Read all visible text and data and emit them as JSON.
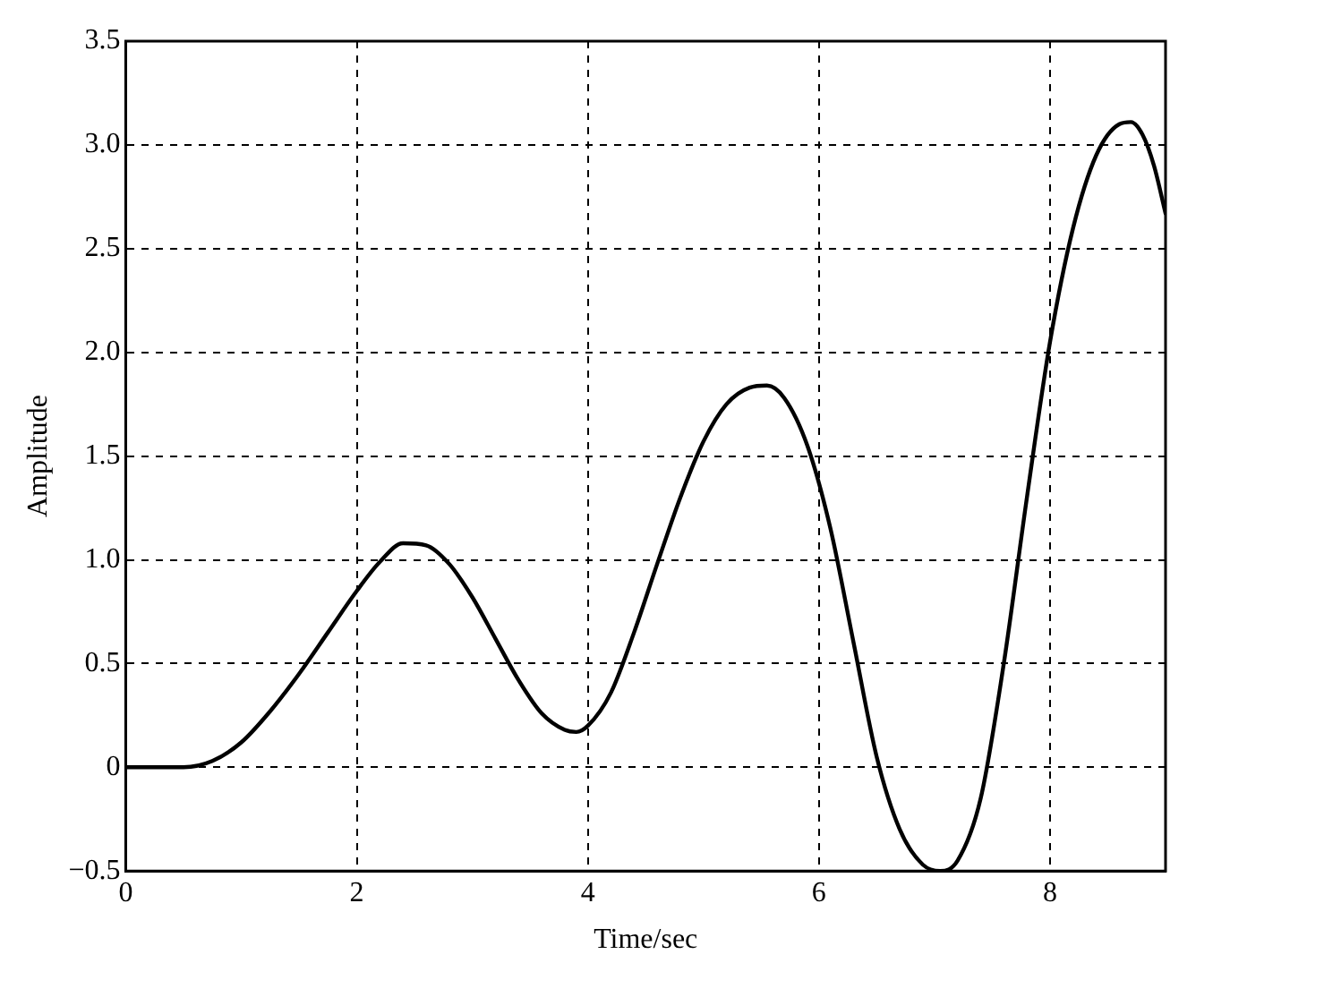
{
  "chart_data": {
    "type": "line",
    "xlabel": "Time/sec",
    "ylabel": "Amplitude",
    "x": [
      0,
      0.5,
      0.75,
      1,
      1.25,
      1.5,
      1.75,
      2,
      2.2,
      2.4,
      2.6,
      2.8,
      3,
      3.2,
      3.4,
      3.6,
      3.8,
      3.9,
      4,
      4.2,
      4.4,
      4.6,
      4.8,
      5,
      5.2,
      5.4,
      5.55,
      5.7,
      5.9,
      6.1,
      6.3,
      6.5,
      6.7,
      6.9,
      7.05,
      7.2,
      7.4,
      7.6,
      7.8,
      8,
      8.2,
      8.4,
      8.6,
      8.7,
      8.8,
      8.9,
      9
    ],
    "series": [
      {
        "color": "#000000",
        "values": [
          0,
          0,
          0.03,
          0.12,
          0.27,
          0.45,
          0.65,
          0.85,
          0.99,
          1.08,
          1.07,
          0.98,
          0.82,
          0.62,
          0.42,
          0.26,
          0.18,
          0.17,
          0.2,
          0.36,
          0.65,
          0.98,
          1.3,
          1.57,
          1.75,
          1.83,
          1.84,
          1.78,
          1.55,
          1.15,
          0.6,
          0.05,
          -0.3,
          -0.47,
          -0.5,
          -0.45,
          -0.15,
          0.5,
          1.3,
          2.05,
          2.6,
          2.95,
          3.1,
          3.11,
          3.05,
          2.9,
          2.67
        ]
      }
    ],
    "xlim": [
      0,
      9
    ],
    "xticks": [
      0,
      2,
      4,
      6,
      8
    ],
    "ylim": [
      -0.5,
      3.5
    ],
    "yticks": [
      {
        "value": -0.5,
        "label": "−0.5"
      },
      0,
      0.5,
      {
        "value": 1,
        "label": "1.0"
      },
      1.5,
      {
        "value": 2,
        "label": "2.0"
      },
      2.5,
      {
        "value": 3,
        "label": "3.0"
      },
      3.5
    ],
    "grid": true,
    "legend": false,
    "marker": "none",
    "line_style": "solid"
  }
}
